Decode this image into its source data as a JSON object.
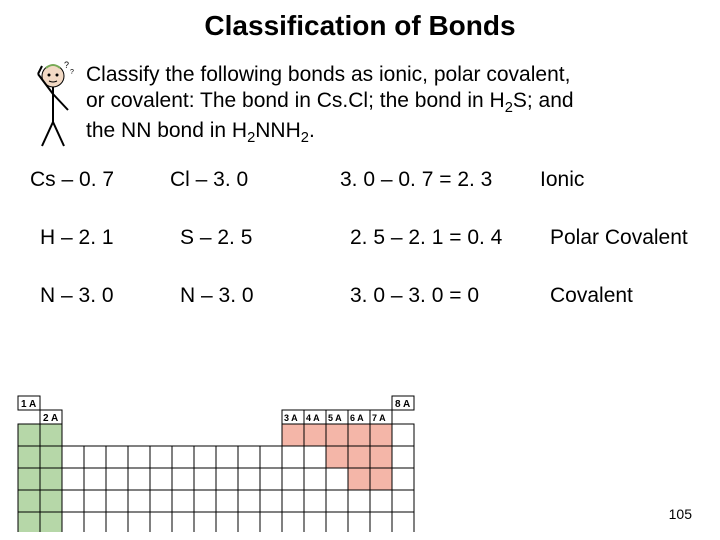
{
  "title": "Classification of Bonds",
  "prompt": {
    "l1": "Classify the following bonds as ionic, polar covalent,",
    "l2a": "or covalent:  The bond in Cs.Cl; the bond in H",
    "l2sub": "2",
    "l2b": "S; and",
    "l3a": "the NN bond in H",
    "l3sub1": "2",
    "l3b": "NNH",
    "l3sub2": "2",
    "l3c": "."
  },
  "rows": [
    {
      "a": "Cs – 0. 7",
      "b": "Cl – 3. 0",
      "c": "3. 0 – 0. 7 = 2. 3",
      "d": "Ionic"
    },
    {
      "a": "H – 2. 1",
      "b": "S – 2. 5",
      "c": "2. 5 – 2. 1 = 0. 4",
      "d": "Polar Covalent"
    },
    {
      "a": "N – 3. 0",
      "b": "N – 3. 0",
      "c": "3. 0 – 3. 0 = 0",
      "d": "Covalent"
    }
  ],
  "ptable": {
    "labels": {
      "g1": "1 A",
      "g2": "2 A",
      "g3": "3 A",
      "g4": "4 A",
      "g5": "5 A",
      "g6": "6 A",
      "g7": "7 A",
      "g8": "8 A"
    },
    "cell": 22,
    "colors": {
      "stroke": "#000000",
      "green": "#b6d7a8",
      "pink": "#f4b6a8",
      "white": "#ffffff",
      "label_border": "#000000"
    }
  },
  "page_number": "105"
}
